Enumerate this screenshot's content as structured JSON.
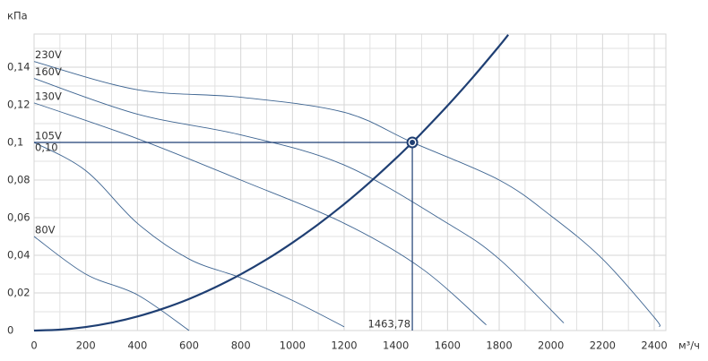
{
  "chart_data": {
    "type": "line",
    "y_label": "кПа",
    "x_label": "м³/ч",
    "xlim": [
      0,
      2445
    ],
    "ylim": [
      0,
      0.1576
    ],
    "xticks": [
      0,
      200,
      400,
      600,
      800,
      1000,
      1200,
      1400,
      1600,
      1800,
      2000,
      2200,
      2400
    ],
    "yticks": [
      0,
      {
        "value": 0.02,
        "label": "0,02"
      },
      {
        "value": 0.04,
        "label": "0,04"
      },
      {
        "value": 0.06,
        "label": "0,06"
      },
      {
        "value": 0.08,
        "label": "0,08"
      },
      {
        "value": 0.1,
        "label": "0,1"
      },
      {
        "value": 0.12,
        "label": "0,12"
      },
      {
        "value": 0.14,
        "label": "0,14"
      }
    ],
    "grid": true,
    "series": [
      {
        "name": "230V",
        "color": "#3d6491",
        "x": [
          0,
          400,
          800,
          1200,
          1463.78,
          1800,
          2000,
          2200,
          2400,
          2420
        ],
        "values": [
          0.143,
          0.128,
          0.124,
          0.116,
          0.1,
          0.08,
          0.061,
          0.038,
          0.007,
          0.002
        ]
      },
      {
        "name": "160V",
        "color": "#3d6491",
        "x": [
          0,
          400,
          800,
          1200,
          1600,
          1800,
          2050
        ],
        "values": [
          0.134,
          0.115,
          0.104,
          0.088,
          0.057,
          0.038,
          0.004
        ]
      },
      {
        "name": "130V",
        "color": "#3d6491",
        "x": [
          0,
          400,
          800,
          1200,
          1500,
          1750
        ],
        "values": [
          0.121,
          0.102,
          0.08,
          0.057,
          0.033,
          0.003
        ]
      },
      {
        "name": "105V",
        "color": "#3d6491",
        "x": [
          0,
          200,
          400,
          600,
          800,
          1000,
          1200
        ],
        "values": [
          0.1,
          0.085,
          0.057,
          0.038,
          0.028,
          0.016,
          0.002
        ]
      },
      {
        "name": "80V",
        "color": "#3d6491",
        "x": [
          0,
          200,
          400,
          600
        ],
        "values": [
          0.05,
          0.03,
          0.019,
          0
        ]
      },
      {
        "color": "#1f3f73",
        "x": [
          0,
          100,
          200,
          300,
          400,
          500,
          600,
          700,
          800,
          900,
          1000,
          1100,
          1200,
          1300,
          1400,
          1463.78,
          1500,
          1600,
          1700,
          1800,
          1835
        ],
        "values": [
          0,
          0.00047,
          0.00187,
          0.0042,
          0.00747,
          0.0117,
          0.0168,
          0.0229,
          0.0299,
          0.0378,
          0.0467,
          0.0565,
          0.0672,
          0.0789,
          0.0915,
          0.1,
          0.105,
          0.1195,
          0.1349,
          0.1512,
          0.1572
        ]
      }
    ],
    "operating_point": {
      "x": 1463.78,
      "y": 0.1,
      "x_label": "1463,78",
      "y_label": "0,10",
      "color": "#1f3f73"
    }
  }
}
